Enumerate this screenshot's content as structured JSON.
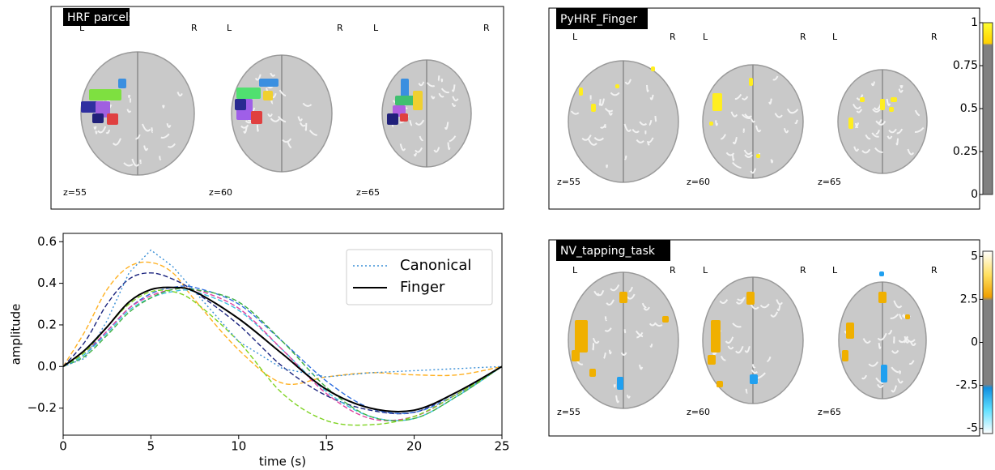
{
  "brain_panels": [
    {
      "title": "HRF parcels",
      "slices": [
        {
          "left": "L",
          "right": "R",
          "z": "z=55"
        },
        {
          "left": "L",
          "right": "R",
          "z": "z=60"
        },
        {
          "left": "L",
          "right": "R",
          "z": "z=65"
        }
      ]
    },
    {
      "title": "PyHRF_Finger",
      "slices": [
        {
          "left": "L",
          "right": "R",
          "z": "z=55"
        },
        {
          "left": "L",
          "right": "R",
          "z": "z=60"
        },
        {
          "left": "L",
          "right": "R",
          "z": "z=65"
        }
      ],
      "colorbar": {
        "clim": [
          0,
          1
        ],
        "ticks": [
          1,
          0.75,
          0.5,
          0.25,
          0
        ]
      }
    },
    {
      "title": "NV_tapping_task",
      "slices": [
        {
          "left": "L",
          "right": "R",
          "z": "z=55"
        },
        {
          "left": "L",
          "right": "R",
          "z": "z=60"
        },
        {
          "left": "L",
          "right": "R",
          "z": "z=65"
        }
      ],
      "colorbar": {
        "clim": [
          -5.3,
          5.3
        ],
        "ticks": [
          5,
          2.5,
          0,
          -2.5,
          -5
        ]
      }
    }
  ],
  "chart_data": {
    "type": "line",
    "x_label": "time (s)",
    "y_label": "amplitude",
    "x": [
      0,
      1.25,
      2.5,
      3.75,
      5,
      6.25,
      7.5,
      10,
      12.5,
      15,
      17.5,
      20,
      22.5,
      25
    ],
    "xlim": [
      0,
      25
    ],
    "xticks": [
      0,
      5,
      10,
      15,
      20,
      25
    ],
    "ylim": [
      -0.33,
      0.64
    ],
    "yticks": [
      {
        "value": -0.2,
        "label": "−0.2"
      },
      {
        "value": 0,
        "label": "0.0"
      },
      0.2,
      0.4,
      0.6
    ],
    "legend": "upper right",
    "series": [
      {
        "name": "Canonical",
        "color": "#3a8fd6",
        "style": "dotted",
        "values": [
          0,
          0.04,
          0.22,
          0.45,
          0.56,
          0.48,
          0.36,
          0.12,
          -0.01,
          -0.05,
          -0.03,
          -0.02,
          -0.01,
          0
        ]
      },
      {
        "name": "Finger",
        "color": "#000000",
        "style": "solid",
        "values": [
          0,
          0.08,
          0.19,
          0.31,
          0.37,
          0.38,
          0.36,
          0.23,
          0.06,
          -0.11,
          -0.2,
          -0.21,
          -0.12,
          0
        ]
      },
      {
        "color": "#ffb020",
        "style": "dashed",
        "values": [
          0,
          0.17,
          0.37,
          0.48,
          0.5,
          0.45,
          0.32,
          0.08,
          -0.08,
          -0.05,
          -0.03,
          -0.04,
          -0.04,
          0
        ]
      },
      {
        "color": "#1a237e",
        "style": "dashed",
        "values": [
          0,
          0.12,
          0.3,
          0.42,
          0.45,
          0.42,
          0.36,
          0.2,
          0,
          -0.14,
          -0.21,
          -0.22,
          -0.12,
          0
        ]
      },
      {
        "color": "#2f6fe0",
        "style": "dashed",
        "values": [
          0,
          0.06,
          0.17,
          0.28,
          0.35,
          0.38,
          0.38,
          0.3,
          0.12,
          -0.07,
          -0.2,
          -0.22,
          -0.13,
          0
        ]
      },
      {
        "color": "#40c0e0",
        "style": "dashed",
        "values": [
          0,
          0.06,
          0.16,
          0.27,
          0.33,
          0.36,
          0.36,
          0.27,
          0.08,
          -0.12,
          -0.24,
          -0.25,
          -0.14,
          0
        ]
      },
      {
        "color": "#e040a0",
        "style": "dashed",
        "values": [
          0,
          0.07,
          0.17,
          0.28,
          0.34,
          0.37,
          0.37,
          0.28,
          0.08,
          -0.13,
          -0.25,
          -0.24,
          -0.13,
          0
        ]
      },
      {
        "color": "#3cb043",
        "style": "dashed",
        "values": [
          0,
          0.05,
          0.15,
          0.26,
          0.33,
          0.37,
          0.37,
          0.31,
          0.12,
          -0.1,
          -0.24,
          -0.25,
          -0.14,
          0
        ]
      },
      {
        "color": "#7ed321",
        "style": "dashed",
        "values": [
          0,
          0.07,
          0.19,
          0.3,
          0.36,
          0.36,
          0.31,
          0.12,
          -0.13,
          -0.26,
          -0.28,
          -0.24,
          -0.13,
          0
        ]
      }
    ]
  }
}
